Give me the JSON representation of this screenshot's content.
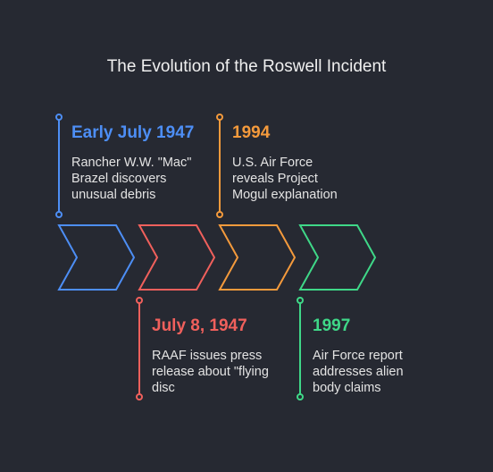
{
  "title": "The Evolution of the Roswell Incident",
  "events": [
    {
      "year": "Early July 1947",
      "desc_lines": [
        "Rancher W.W. \"Mac\"",
        "Brazel discovers",
        "unusual debris"
      ],
      "color": "#4d8ef5"
    },
    {
      "year": "July 8, 1947",
      "desc_lines": [
        "RAAF issues press",
        "release about \"flying",
        "disc"
      ],
      "color": "#f0605c"
    },
    {
      "year": "1994",
      "desc_lines": [
        "U.S. Air Force",
        "reveals Project",
        "Mogul explanation"
      ],
      "color": "#f49a3c"
    },
    {
      "year": "1997",
      "desc_lines": [
        "Air Force report",
        "addresses alien",
        "body claims"
      ],
      "color": "#3fd888"
    }
  ]
}
